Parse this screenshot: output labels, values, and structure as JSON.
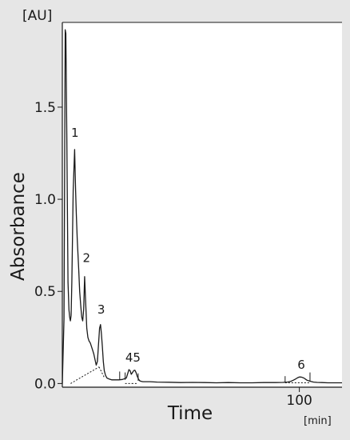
{
  "chart_data": {
    "type": "line",
    "xlabel": "Time",
    "ylabel": "Absorbance",
    "x_unit": "[min]",
    "y_unit": "[AU]",
    "xlim": [
      0,
      118
    ],
    "ylim": [
      -0.02,
      1.96
    ],
    "x_ticks": [
      {
        "value": 100,
        "label": "100"
      }
    ],
    "y_ticks": [
      {
        "value": 0.0,
        "label": "0.0"
      },
      {
        "value": 0.5,
        "label": "0.5"
      },
      {
        "value": 1.0,
        "label": "1.0"
      },
      {
        "value": 1.5,
        "label": "1.5"
      }
    ],
    "grid": false,
    "background": "#e6e6e6",
    "plot_background": "#ffffff",
    "line_color": "#1a1a1a",
    "series": [
      {
        "x": [
          0.0,
          0.7,
          1.2,
          1.5,
          1.9,
          2.4,
          2.8,
          3.1,
          3.4,
          3.7,
          4.0,
          4.6,
          5.2,
          5.6,
          5.9,
          6.1,
          6.3,
          6.6,
          6.9,
          7.3,
          7.8,
          8.2,
          8.6,
          9.0,
          9.4,
          9.8,
          10.3,
          10.8,
          11.3,
          11.8,
          12.3,
          12.8,
          13.3,
          13.8,
          14.3,
          14.8,
          15.3,
          15.7,
          16.1,
          16.5,
          16.9,
          17.3,
          17.7,
          18.2,
          18.8,
          19.6,
          20.8,
          22.3,
          23.9,
          25.4,
          27.0,
          27.6,
          28.1,
          28.6,
          29.1,
          29.6,
          30.1,
          30.6,
          31.1,
          31.6,
          32.1,
          32.6,
          33.2,
          34.0,
          35.2,
          37.0,
          40.0,
          45.0,
          50.0,
          55.0,
          60.0,
          65.0,
          70.0,
          75.0,
          80.0,
          85.0,
          90.0,
          93.0,
          95.0,
          96.5,
          97.5,
          98.3,
          99.1,
          99.9,
          100.8,
          101.9,
          103.2,
          104.6,
          106.0,
          107.5,
          109.5,
          112.0,
          115.0,
          118.0
        ],
        "y": [
          0.0,
          0.35,
          1.92,
          1.9,
          1.35,
          0.55,
          0.4,
          0.36,
          0.34,
          0.37,
          0.55,
          1.05,
          1.27,
          1.05,
          0.92,
          0.85,
          0.78,
          0.7,
          0.62,
          0.5,
          0.42,
          0.36,
          0.34,
          0.4,
          0.58,
          0.45,
          0.3,
          0.25,
          0.23,
          0.22,
          0.2,
          0.18,
          0.16,
          0.13,
          0.1,
          0.12,
          0.22,
          0.3,
          0.32,
          0.27,
          0.2,
          0.12,
          0.07,
          0.045,
          0.03,
          0.025,
          0.02,
          0.02,
          0.02,
          0.022,
          0.03,
          0.055,
          0.075,
          0.07,
          0.05,
          0.06,
          0.07,
          0.072,
          0.06,
          0.04,
          0.025,
          0.015,
          0.012,
          0.01,
          0.01,
          0.01,
          0.008,
          0.007,
          0.005,
          0.006,
          0.005,
          0.004,
          0.005,
          0.004,
          0.004,
          0.005,
          0.005,
          0.006,
          0.008,
          0.012,
          0.018,
          0.024,
          0.03,
          0.035,
          0.035,
          0.03,
          0.018,
          0.012,
          0.008,
          0.006,
          0.005,
          0.004,
          0.004,
          0.004
        ]
      }
    ],
    "baselines": [
      {
        "x": [
          3.5,
          15.5
        ],
        "y": [
          0.0,
          0.09
        ]
      },
      {
        "x": [
          15.5,
          17.8
        ],
        "y": [
          0.09,
          0.03
        ]
      },
      {
        "x": [
          26.5,
          29.3
        ],
        "y": [
          0.0,
          0.0
        ]
      },
      {
        "x": [
          29.3,
          32.0
        ],
        "y": [
          0.0,
          0.0
        ]
      },
      {
        "x": [
          94.0,
          104.5
        ],
        "y": [
          0.004,
          0.004
        ]
      }
    ],
    "peak_markers": [
      {
        "x": 14.8,
        "y0": 0.12,
        "y1": 0.14
      },
      {
        "x": 24.2,
        "y0": 0.022,
        "y1": 0.065
      },
      {
        "x": 26.5,
        "y0": 0.02,
        "y1": 0.06
      },
      {
        "x": 32.0,
        "y0": 0.015,
        "y1": 0.055
      },
      {
        "x": 94.0,
        "y0": 0.006,
        "y1": 0.04
      },
      {
        "x": 104.5,
        "y0": 0.012,
        "y1": 0.06
      }
    ],
    "annotations": [
      {
        "text": "1",
        "x": 5.3,
        "y": 1.34
      },
      {
        "text": "2",
        "x": 10.2,
        "y": 0.66
      },
      {
        "text": "3",
        "x": 16.4,
        "y": 0.38
      },
      {
        "text": "4",
        "x": 28.2,
        "y": 0.12
      },
      {
        "text": "5",
        "x": 31.4,
        "y": 0.12
      },
      {
        "text": "6",
        "x": 100.8,
        "y": 0.08
      }
    ]
  }
}
